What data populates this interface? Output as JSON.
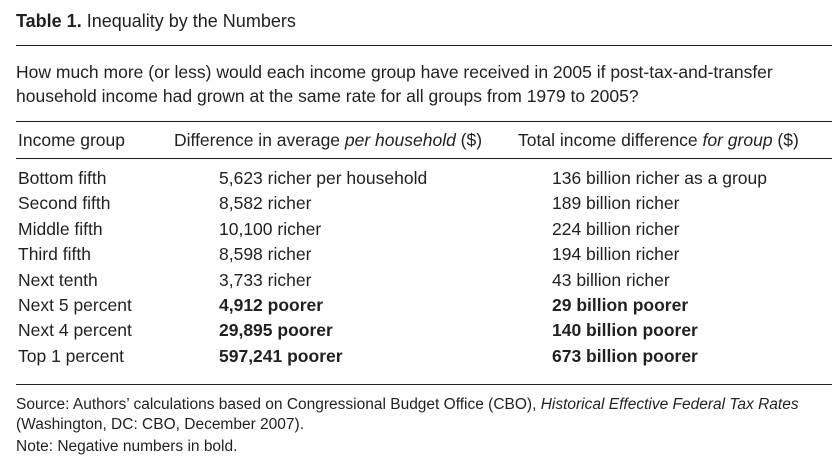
{
  "table": {
    "label": "Table 1.",
    "title": "Inequality by the Numbers",
    "question": "How much more (or less) would each income group have received in 2005 if post-tax-and-transfer household income had grown at the same rate for all groups from 1979 to 2005?",
    "headers": {
      "col0": "Income group",
      "col1_pre": "Difference in average ",
      "col1_em": "per household",
      "col1_post": " ($)",
      "col2_pre": "Total income difference ",
      "col2_em": "for group",
      "col2_post": " ($)"
    },
    "rows": [
      {
        "group": "Bottom fifth",
        "per_household": "5,623 richer per household",
        "total": "136 billion richer as a group",
        "bold": false
      },
      {
        "group": "Second fifth",
        "per_household": "8,582 richer",
        "total": "189 billion richer",
        "bold": false
      },
      {
        "group": "Middle fifth",
        "per_household": "10,100 richer",
        "total": "224 billion richer",
        "bold": false
      },
      {
        "group": "Third fifth",
        "per_household": "8,598 richer",
        "total": "194 billion richer",
        "bold": false
      },
      {
        "group": "Next tenth",
        "per_household": "3,733 richer",
        "total": "43 billion richer",
        "bold": false
      },
      {
        "group": "Next 5 percent",
        "per_household": "4,912 poorer",
        "total": "29 billion poorer",
        "bold": true
      },
      {
        "group": "Next 4 percent",
        "per_household": "29,895 poorer",
        "total": "140 billion poorer",
        "bold": true
      },
      {
        "group": "Top 1 percent",
        "per_household": "597,241 poorer",
        "total": "673 billion poorer",
        "bold": true
      }
    ],
    "source_pre": "Source: Authors’ calculations based on Congressional Budget Office (CBO), ",
    "source_em": "Historical Effective Federal Tax Rates",
    "source_post": " (Washington, DC: CBO, December 2007).",
    "note": "Note: Negative numbers in bold."
  }
}
